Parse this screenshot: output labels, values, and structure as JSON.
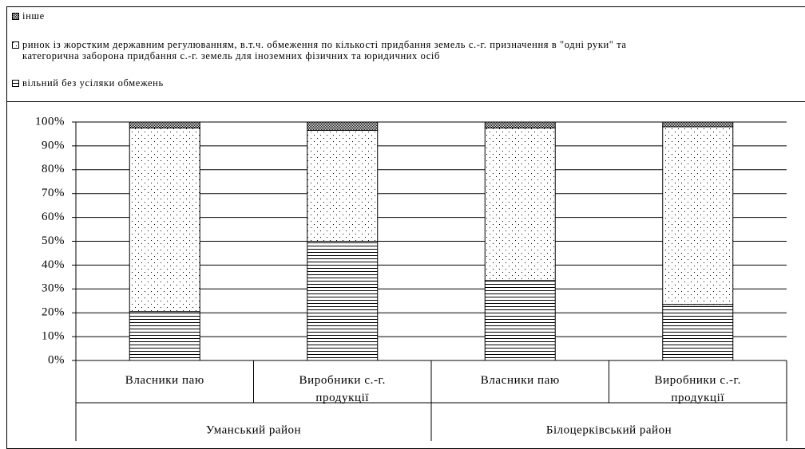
{
  "chart_data": {
    "type": "stacked_bar",
    "categories": [
      "Власники паю",
      "Виробники с.-г. продукції",
      "Власники паю",
      "Виробники с.-г. продукції"
    ],
    "groups": [
      {
        "name": "Уманський район",
        "span": 2
      },
      {
        "name": "Білоцерківський район",
        "span": 2
      }
    ],
    "series": [
      {
        "name": "вільний без усіляки обмежень",
        "pattern": "horizontal",
        "values": [
          20.5,
          50,
          33.5,
          23.5
        ]
      },
      {
        "name": "ринок із жорстким державним регулюванням, в.т.ч. обмеження по кількості придбання земель с.-г. призначення в \"одні руки\" та\nкатегорична заборона придбання с.-г. земель для іноземних фізичних та юридичних осіб",
        "pattern": "dots",
        "values": [
          77,
          46.5,
          64,
          74.5
        ]
      },
      {
        "name": "інше",
        "pattern": "checker",
        "values": [
          2.5,
          3.5,
          2.5,
          2
        ]
      }
    ],
    "ylim": [
      0,
      100
    ],
    "yticks": [
      {
        "value": 0,
        "label": "0%"
      },
      {
        "value": 10,
        "label": "10%"
      },
      {
        "value": 20,
        "label": "20%"
      },
      {
        "value": 30,
        "label": "30%"
      },
      {
        "value": 40,
        "label": "40%"
      },
      {
        "value": 50,
        "label": "50%"
      },
      {
        "value": 60,
        "label": "60%"
      },
      {
        "value": 70,
        "label": "70%"
      },
      {
        "value": 80,
        "label": "80%"
      },
      {
        "value": 90,
        "label": "90%"
      },
      {
        "value": 100,
        "label": "100%"
      }
    ],
    "grid": true,
    "legend": "top"
  }
}
